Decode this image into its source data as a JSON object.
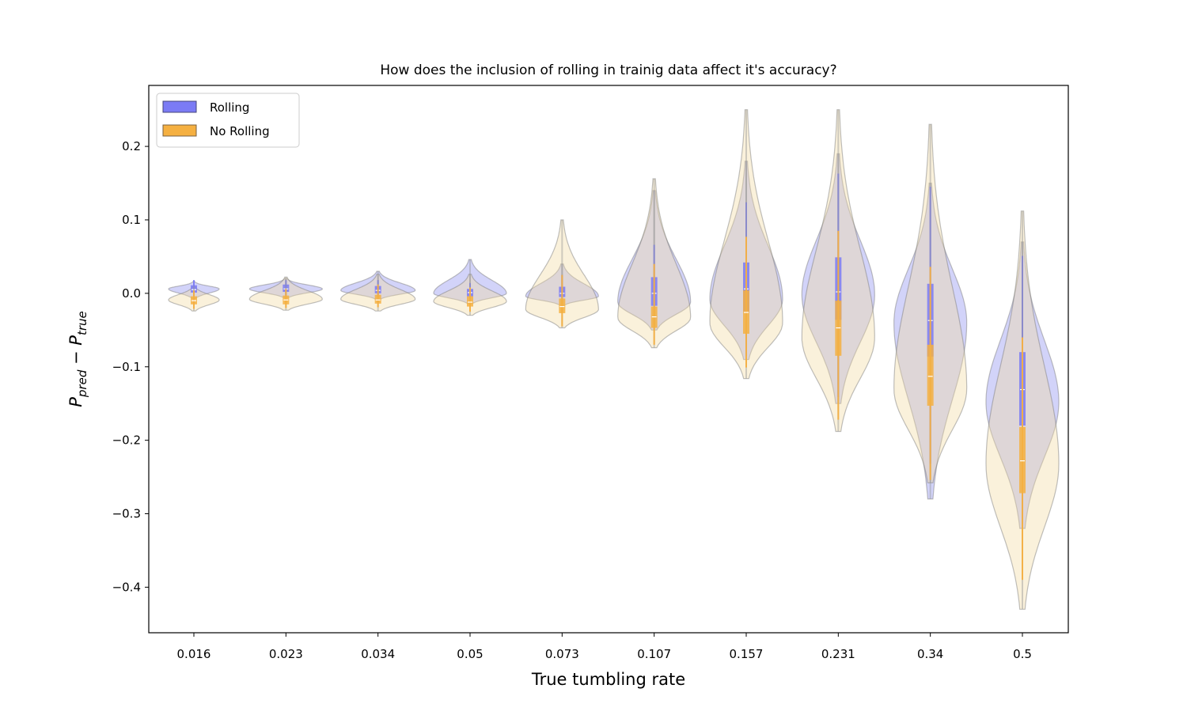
{
  "chart_data": {
    "type": "violin",
    "title": "How does the inclusion of rolling in trainig data affect it's accuracy?",
    "xlabel": "True tumbling rate",
    "ylabel": {
      "main_a": "P",
      "sub_a": "pred",
      "op": " − ",
      "main_b": "P",
      "sub_b": "true"
    },
    "ylim": [
      -0.462,
      0.283
    ],
    "yticks": [
      0.2,
      0.1,
      0.0,
      -0.1,
      -0.2,
      -0.3,
      -0.4
    ],
    "ytick_labels": [
      "0.2",
      "0.1",
      "0.0",
      "−0.1",
      "−0.2",
      "−0.3",
      "−0.4"
    ],
    "categories": [
      "0.016",
      "0.023",
      "0.034",
      "0.05",
      "0.073",
      "0.107",
      "0.157",
      "0.231",
      "0.34",
      "0.5"
    ],
    "legend": {
      "location": "upper-left"
    },
    "series": [
      {
        "name": "Rolling",
        "color": "#7b7bf5",
        "fill": "#8a8cf0",
        "median": [
          0.005,
          0.006,
          0.004,
          0.001,
          0.0,
          0.0,
          0.006,
          0.002,
          -0.037,
          -0.131
        ],
        "q1": [
          0.001,
          0.002,
          0.0,
          -0.004,
          -0.005,
          -0.017,
          -0.025,
          -0.036,
          -0.086,
          -0.18
        ],
        "q3": [
          0.011,
          0.012,
          0.01,
          0.006,
          0.009,
          0.022,
          0.042,
          0.049,
          0.013,
          -0.08
        ],
        "whisker_low": [
          -0.003,
          -0.003,
          -0.004,
          -0.01,
          -0.012,
          -0.043,
          -0.085,
          -0.141,
          -0.232,
          -0.314
        ],
        "whisker_high": [
          0.018,
          0.018,
          0.018,
          0.014,
          0.025,
          0.066,
          0.124,
          0.163,
          0.145,
          0.051
        ],
        "range_low": [
          -0.007,
          -0.006,
          -0.008,
          -0.014,
          -0.016,
          -0.05,
          -0.09,
          -0.15,
          -0.28,
          -0.32
        ],
        "range_high": [
          0.016,
          0.02,
          0.03,
          0.046,
          0.04,
          0.14,
          0.18,
          0.19,
          0.15,
          0.07
        ],
        "peak_offset": [
          0.006,
          0.006,
          0.004,
          0.0,
          -0.004,
          -0.012,
          -0.008,
          -0.002,
          -0.04,
          -0.148
        ],
        "half_width": [
          32,
          46,
          47,
          46,
          46,
          46,
          46,
          46,
          46,
          46
        ]
      },
      {
        "name": "No Rolling",
        "color": "#f5b041",
        "fill": "#f2d9a0",
        "median": [
          -0.01,
          -0.009,
          -0.009,
          -0.012,
          -0.018,
          -0.032,
          -0.026,
          -0.047,
          -0.113,
          -0.228
        ],
        "q1": [
          -0.015,
          -0.015,
          -0.014,
          -0.018,
          -0.027,
          -0.047,
          -0.055,
          -0.085,
          -0.153,
          -0.272
        ],
        "q3": [
          -0.004,
          -0.003,
          -0.002,
          -0.004,
          -0.007,
          -0.018,
          0.004,
          -0.01,
          -0.07,
          -0.182
        ],
        "whisker_low": [
          -0.021,
          -0.02,
          -0.019,
          -0.025,
          -0.045,
          -0.07,
          -0.101,
          -0.172,
          -0.254,
          -0.39
        ],
        "whisker_high": [
          0.004,
          0.006,
          0.012,
          0.008,
          0.025,
          0.04,
          0.077,
          0.085,
          0.036,
          -0.06
        ],
        "range_low": [
          -0.024,
          -0.023,
          -0.024,
          -0.03,
          -0.047,
          -0.074,
          -0.116,
          -0.188,
          -0.258,
          -0.43
        ],
        "range_high": [
          0.01,
          0.022,
          0.026,
          0.026,
          0.1,
          0.156,
          0.25,
          0.25,
          0.23,
          0.112
        ],
        "peak_offset": [
          -0.009,
          -0.008,
          -0.008,
          -0.011,
          -0.022,
          -0.033,
          -0.04,
          -0.06,
          -0.13,
          -0.232
        ],
        "half_width": [
          32,
          46,
          47,
          46,
          46,
          46,
          46,
          46,
          46,
          46
        ]
      }
    ]
  }
}
